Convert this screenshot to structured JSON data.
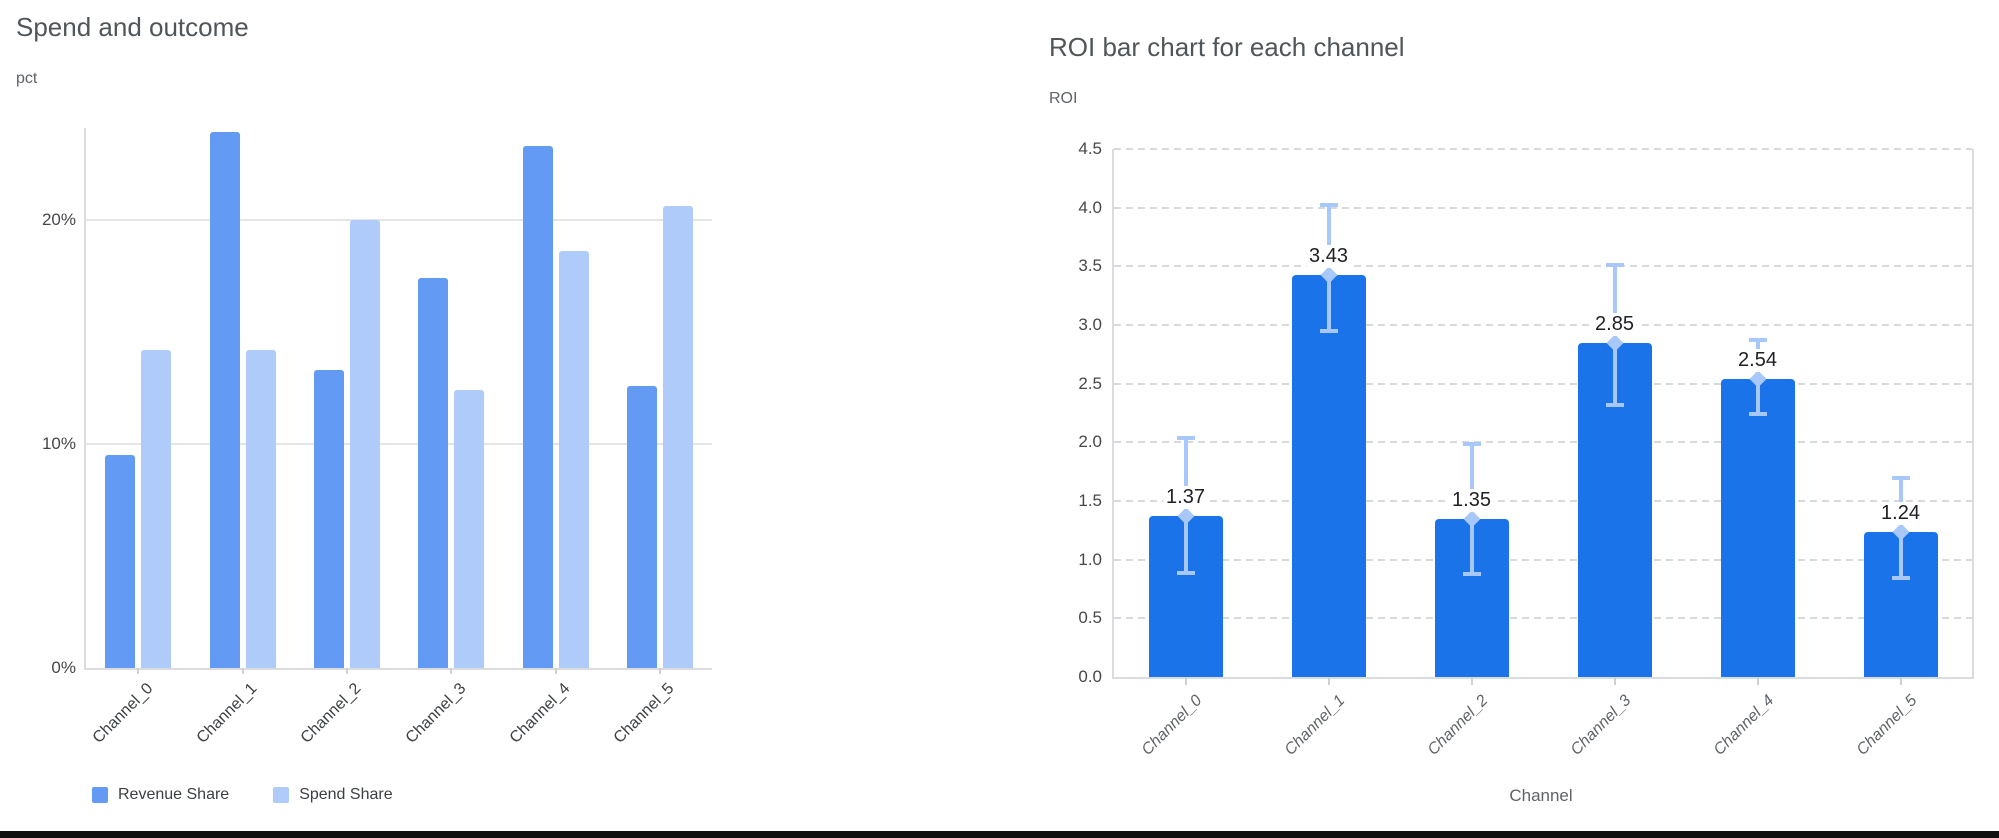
{
  "page": {
    "bottom_border_color": "#111111"
  },
  "chart_data": [
    {
      "type": "bar",
      "variant": "grouped",
      "title": "Spend and outcome",
      "unit_label": "pct",
      "categories": [
        "Channel_0",
        "Channel_1",
        "Channel_2",
        "Channel_3",
        "Channel_4",
        "Channel_5"
      ],
      "series": [
        {
          "name": "Revenue Share",
          "color": "#639af4",
          "values": [
            9.5,
            23.9,
            13.3,
            17.4,
            23.3,
            12.6
          ]
        },
        {
          "name": "Spend Share",
          "color": "#aecbfa",
          "values": [
            14.2,
            14.2,
            20.0,
            12.4,
            18.6,
            20.6
          ]
        }
      ],
      "y_axis": {
        "ticks": [
          {
            "label": "0%",
            "v": 0
          },
          {
            "label": "10%",
            "v": 10
          },
          {
            "label": "20%",
            "v": 20
          }
        ],
        "max": 24.1
      },
      "grid": "horizontal-solid",
      "legend_position": "bottom-left"
    },
    {
      "type": "bar",
      "variant": "single-series-with-error-bars",
      "title": "ROI bar chart for each channel",
      "unit_label": "ROI",
      "xlabel": "Channel",
      "categories": [
        "Channel_0",
        "Channel_1",
        "Channel_2",
        "Channel_3",
        "Channel_4",
        "Channel_5"
      ],
      "values": [
        1.37,
        3.43,
        1.35,
        2.85,
        2.54,
        1.24
      ],
      "value_labels": [
        "1.37",
        "3.43",
        "1.35",
        "2.85",
        "2.54",
        "1.24"
      ],
      "error_high": [
        2.04,
        4.02,
        1.99,
        3.51,
        2.87,
        1.7
      ],
      "error_low": [
        0.89,
        2.95,
        0.88,
        2.32,
        2.24,
        0.84
      ],
      "bar_color": "#1a73e8",
      "error_color": "#a8c7fa",
      "y_axis": {
        "ticks": [
          {
            "label": "0.0",
            "v": 0.0
          },
          {
            "label": "0.5",
            "v": 0.5
          },
          {
            "label": "1.0",
            "v": 1.0
          },
          {
            "label": "1.5",
            "v": 1.5
          },
          {
            "label": "2.0",
            "v": 2.0
          },
          {
            "label": "2.5",
            "v": 2.5
          },
          {
            "label": "3.0",
            "v": 3.0
          },
          {
            "label": "3.5",
            "v": 3.5
          },
          {
            "label": "4.0",
            "v": 4.0
          },
          {
            "label": "4.5",
            "v": 4.5
          }
        ],
        "max": 4.5
      },
      "grid": "horizontal-dashed"
    }
  ]
}
